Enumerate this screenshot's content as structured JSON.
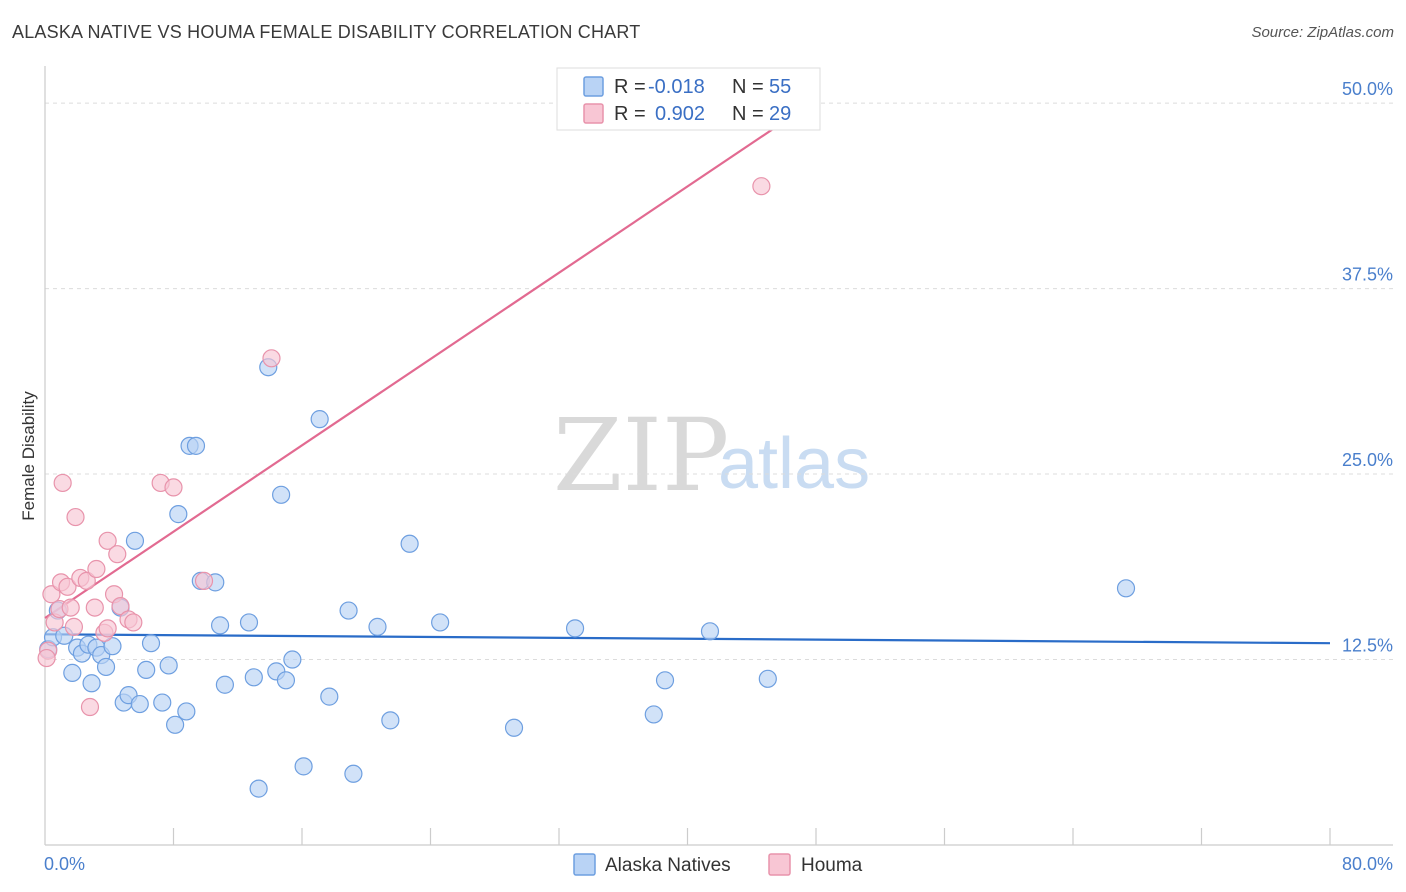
{
  "title": "ALASKA NATIVE VS HOUMA FEMALE DISABILITY CORRELATION CHART",
  "source": "Source: ZipAtlas.com",
  "watermark": {
    "zip": "ZIP",
    "atlas": "atlas"
  },
  "colors": {
    "blue_fill": "#b9d3f5",
    "blue_stroke": "#6e9fe0",
    "blue_line": "#2a6cc8",
    "pink_fill": "#f8c6d4",
    "pink_stroke": "#e893ab",
    "pink_line": "#e26a91",
    "tick_text": "#4a7fcc"
  },
  "legend": {
    "rows": [
      {
        "r_label": "R =",
        "r_value": "-0.018",
        "n_label": "N =",
        "n_value": "55"
      },
      {
        "r_label": "R =",
        "r_value": "0.902",
        "n_label": "N =",
        "n_value": "29"
      }
    ]
  },
  "bottom_legend": [
    "Alaska Natives",
    "Houma"
  ],
  "chart_data": {
    "type": "scatter",
    "title": "ALASKA NATIVE VS HOUMA FEMALE DISABILITY CORRELATION CHART",
    "xlabel": "",
    "ylabel": "Female Disability",
    "xlim": [
      0,
      80
    ],
    "ylim": [
      0,
      52.5
    ],
    "x_tick_labels": [
      "0.0%",
      "80.0%"
    ],
    "y_ticks": [
      12.5,
      25.0,
      37.5,
      50.0
    ],
    "y_tick_labels": [
      "12.5%",
      "25.0%",
      "37.5%",
      "50.0%"
    ],
    "series": [
      {
        "name": "Alaska Natives",
        "r": -0.018,
        "n": 55,
        "trend": {
          "x": [
            0,
            80
          ],
          "y": [
            14.2,
            13.6
          ]
        },
        "points": [
          [
            0.2,
            13.2
          ],
          [
            0.5,
            14.0
          ],
          [
            0.8,
            15.8
          ],
          [
            1.2,
            14.1
          ],
          [
            1.7,
            11.6
          ],
          [
            2.0,
            13.3
          ],
          [
            2.3,
            12.9
          ],
          [
            2.7,
            13.5
          ],
          [
            2.9,
            10.9
          ],
          [
            3.2,
            13.3
          ],
          [
            3.5,
            12.8
          ],
          [
            3.8,
            12.0
          ],
          [
            4.2,
            13.4
          ],
          [
            4.7,
            16.0
          ],
          [
            4.9,
            9.6
          ],
          [
            5.2,
            10.1
          ],
          [
            5.6,
            20.5
          ],
          [
            5.9,
            9.5
          ],
          [
            6.3,
            11.8
          ],
          [
            6.6,
            13.6
          ],
          [
            7.3,
            9.6
          ],
          [
            7.7,
            12.1
          ],
          [
            8.1,
            8.1
          ],
          [
            8.3,
            22.3
          ],
          [
            8.8,
            9.0
          ],
          [
            9.0,
            26.9
          ],
          [
            9.4,
            26.9
          ],
          [
            9.7,
            17.8
          ],
          [
            10.6,
            17.7
          ],
          [
            10.9,
            14.8
          ],
          [
            11.2,
            10.8
          ],
          [
            12.7,
            15.0
          ],
          [
            13.0,
            11.3
          ],
          [
            13.3,
            3.8
          ],
          [
            13.9,
            32.2
          ],
          [
            14.4,
            11.7
          ],
          [
            14.7,
            23.6
          ],
          [
            15.0,
            11.1
          ],
          [
            15.4,
            12.5
          ],
          [
            16.1,
            5.3
          ],
          [
            17.1,
            28.7
          ],
          [
            17.7,
            10.0
          ],
          [
            18.9,
            15.8
          ],
          [
            19.2,
            4.8
          ],
          [
            20.7,
            14.7
          ],
          [
            21.5,
            8.4
          ],
          [
            22.7,
            20.3
          ],
          [
            24.6,
            15.0
          ],
          [
            29.2,
            7.9
          ],
          [
            33.0,
            14.6
          ],
          [
            37.9,
            8.8
          ],
          [
            38.6,
            11.1
          ],
          [
            41.4,
            14.4
          ],
          [
            45.0,
            11.2
          ],
          [
            67.3,
            17.3
          ]
        ]
      },
      {
        "name": "Houma",
        "r": 0.902,
        "n": 29,
        "trend": {
          "x": [
            0,
            48
          ],
          "y": [
            15.3,
            50.2
          ]
        },
        "points": [
          [
            0.2,
            13.1
          ],
          [
            0.4,
            16.9
          ],
          [
            0.6,
            15.0
          ],
          [
            0.9,
            15.9
          ],
          [
            1.0,
            17.7
          ],
          [
            1.1,
            24.4
          ],
          [
            1.4,
            17.4
          ],
          [
            1.6,
            16.0
          ],
          [
            1.8,
            14.7
          ],
          [
            1.9,
            22.1
          ],
          [
            2.2,
            18.0
          ],
          [
            2.6,
            17.8
          ],
          [
            2.8,
            9.3
          ],
          [
            3.1,
            16.0
          ],
          [
            3.2,
            18.6
          ],
          [
            3.7,
            14.3
          ],
          [
            3.9,
            14.6
          ],
          [
            3.9,
            20.5
          ],
          [
            4.3,
            16.9
          ],
          [
            4.5,
            19.6
          ],
          [
            4.7,
            16.1
          ],
          [
            5.2,
            15.2
          ],
          [
            5.5,
            15.0
          ],
          [
            7.2,
            24.4
          ],
          [
            8.0,
            24.1
          ],
          [
            9.9,
            17.8
          ],
          [
            14.1,
            32.8
          ],
          [
            44.6,
            44.4
          ],
          [
            0.1,
            12.6
          ]
        ]
      }
    ]
  }
}
